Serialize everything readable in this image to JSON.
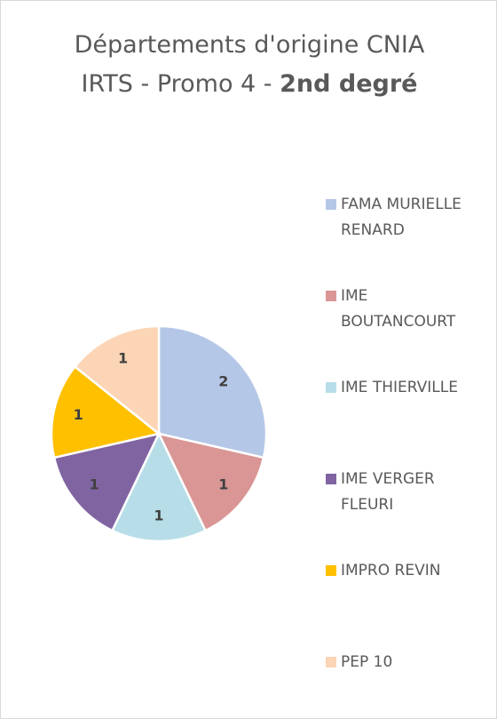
{
  "chart_data": {
    "type": "pie",
    "title": [
      {
        "text": "Départements d'origine CNIA IRTS - Promo 4 - "
      },
      {
        "text": "2nd degré",
        "bold": true
      }
    ],
    "categories": [
      "FAMA MURIELLE RENARD",
      "IME BOUTANCOURT",
      "IME THIERVILLE",
      "IME VERGER FLEURI",
      "IMPRO REVIN",
      "PEP 10"
    ],
    "values": [
      2,
      1,
      1,
      1,
      1,
      1
    ],
    "colors": [
      "#b4c7e7",
      "#d99694",
      "#b7dee8",
      "#8064a2",
      "#ffc000",
      "#fbd5b5"
    ],
    "legend": "right"
  }
}
